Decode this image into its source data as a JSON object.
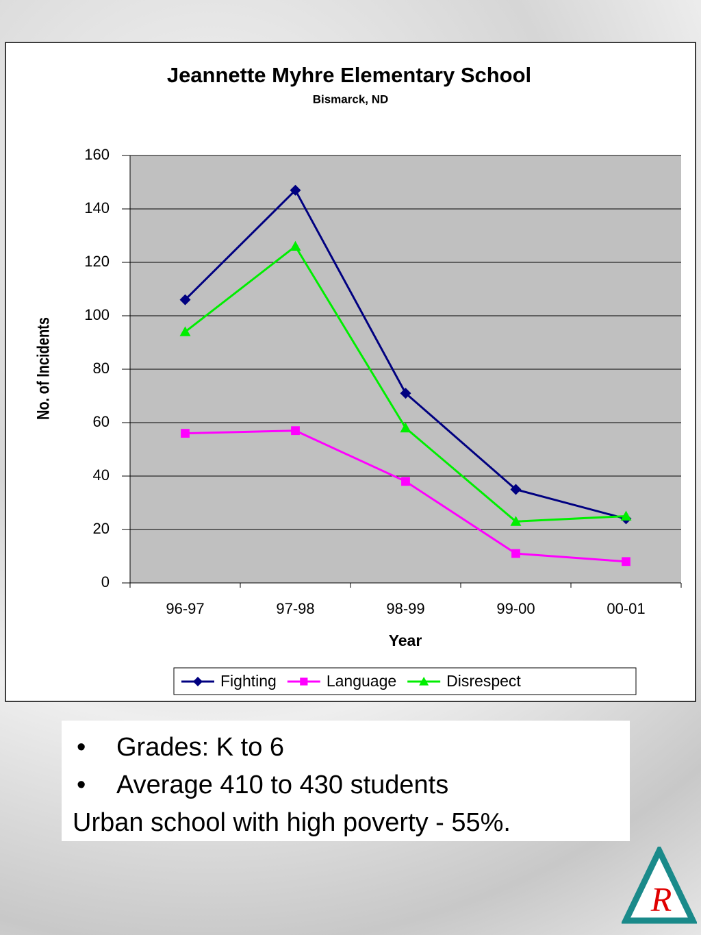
{
  "chart_data": {
    "type": "line",
    "title": "Jeannette  Myhre Elementary School",
    "subtitle": "Bismarck, ND",
    "x_label": "Year",
    "y_label": "No. of Incidents",
    "categories": [
      "96-97",
      "97-98",
      "98-99",
      "99-00",
      "00-01"
    ],
    "series": [
      {
        "name": "Fighting",
        "color": "#000080",
        "marker": "diamond",
        "values": [
          106,
          147,
          71,
          35,
          24
        ]
      },
      {
        "name": "Language",
        "color": "#ff00ff",
        "marker": "square",
        "values": [
          56,
          57,
          38,
          11,
          8
        ]
      },
      {
        "name": "Disrespect",
        "color": "#00ee00",
        "marker": "triangle",
        "values": [
          94,
          126,
          58,
          23,
          25
        ]
      }
    ],
    "ylim": [
      0,
      160
    ],
    "yticks": [
      0,
      20,
      40,
      60,
      80,
      100,
      120,
      140,
      160
    ],
    "grid": true,
    "legend": "bottom"
  },
  "notes": {
    "bullets": [
      "Grades:  K to 6",
      "Average 410 to 430 students"
    ],
    "text": "Urban school with high poverty - 55%."
  },
  "logo": "R"
}
